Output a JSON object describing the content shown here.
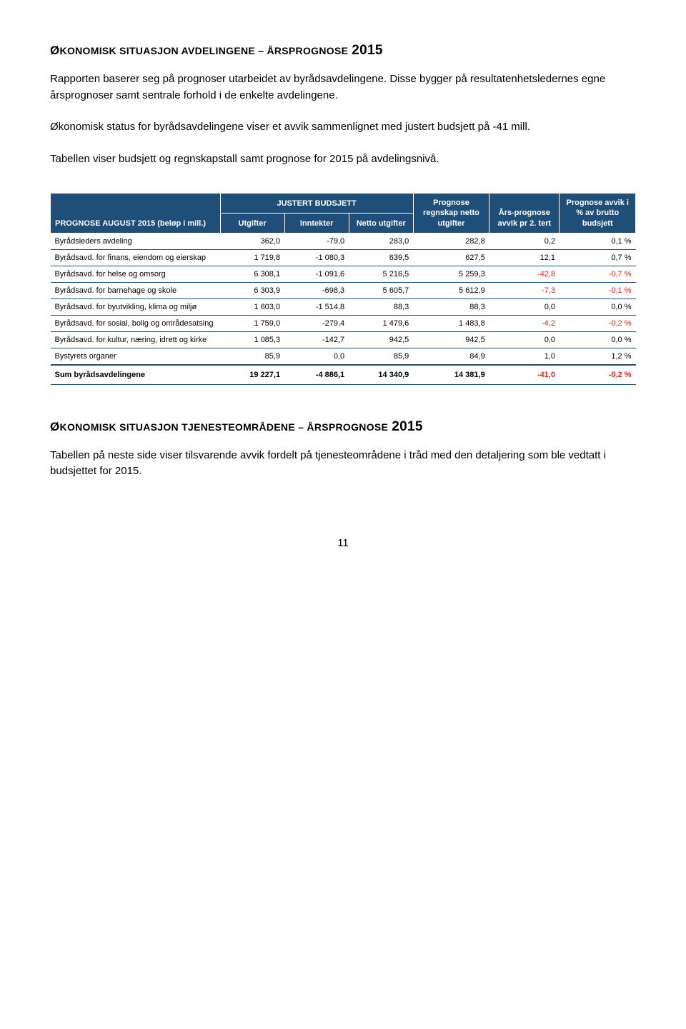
{
  "heading1_pre": "Ø",
  "heading1_sc": "KONOMISK SITUASJON AVDELINGENE – ÅRSPROGNOSE",
  "heading1_year": "2015",
  "para1": "Rapporten baserer seg på prognoser utarbeidet av byrådsavdelingene. Disse bygger på resultatenhetsledernes egne årsprognoser samt sentrale forhold i de enkelte avdelingene.",
  "para2": "Økonomisk status for byrådsavdelingene viser et avvik sammenlignet med justert budsjett på -41 mill.",
  "para3": "Tabellen viser budsjett og regnskapstall samt prognose for 2015 på avdelingsnivå.",
  "table": {
    "col_prognose": "PROGNOSE AUGUST 2015 (beløp i mill.)",
    "col_justert_group": "JUSTERT BUDSJETT",
    "col_utgifter": "Utgifter",
    "col_inntekter": "Inntekter",
    "col_netto_utgifter": "Netto utgifter",
    "col_regnskap": "Prognose regnskap netto utgifter",
    "col_avvik": "Års-prognose avvik pr 2. tert",
    "col_pct": "Prognose avvik i % av brutto budsjett",
    "rows": [
      {
        "label": "Byrådsleders avdeling",
        "c": [
          "362,0",
          "-79,0",
          "283,0",
          "282,8",
          "0,2",
          "0,1 %"
        ]
      },
      {
        "label": "Byrådsavd. for finans, eiendom og eierskap",
        "c": [
          "1 719,8",
          "-1 080,3",
          "639,5",
          "627,5",
          "12,1",
          "0,7 %"
        ]
      },
      {
        "label": "Byrådsavd. for helse og omsorg",
        "c": [
          "6 308,1",
          "-1 091,6",
          "5 216,5",
          "5 259,3",
          "-42,8",
          "-0,7 %"
        ]
      },
      {
        "label": "Byrådsavd. for barnehage og skole",
        "c": [
          "6 303,9",
          "-698,3",
          "5 605,7",
          "5 612,9",
          "-7,3",
          "-0,1 %"
        ]
      },
      {
        "label": "Byrådsavd. for byutvikling, klima og miljø",
        "c": [
          "1 603,0",
          "-1 514,8",
          "88,3",
          "88,3",
          "0,0",
          "0,0 %"
        ]
      },
      {
        "label": "Byrådsavd. for sosial, bolig og områdesatsing",
        "c": [
          "1 759,0",
          "-279,4",
          "1 479,6",
          "1 483,8",
          "-4,2",
          "-0,2 %"
        ]
      },
      {
        "label": "Byrådsavd. for kultur, næring, idrett og kirke",
        "c": [
          "1 085,3",
          "-142,7",
          "942,5",
          "942,5",
          "0,0",
          "0,0 %"
        ]
      },
      {
        "label": "Bystyrets organer",
        "c": [
          "85,9",
          "0,0",
          "85,9",
          "84,9",
          "1,0",
          "1,2 %"
        ]
      }
    ],
    "sumrow": {
      "label": "Sum byrådsavdelingene",
      "c": [
        "19 227,1",
        "-4 886,1",
        "14 340,9",
        "14 381,9",
        "-41,0",
        "-0,2 %"
      ]
    },
    "neg_in_last_two": [
      [
        2
      ],
      [
        3
      ],
      [
        5
      ],
      []
    ]
  },
  "heading2_pre": "Ø",
  "heading2_sc": "KONOMISK SITUASJON TJENESTEOMRÅDENE – ÅRSPROGNOSE",
  "heading2_year": "2015",
  "para4": "Tabellen på neste side viser tilsvarende avvik fordelt på tjenesteområdene i tråd med den detaljering som ble vedtatt i budsjettet for 2015.",
  "page_number": "11",
  "colors": {
    "header_bg": "#1f4e79",
    "negative": "#d9261a",
    "border": "#1f4e79"
  }
}
